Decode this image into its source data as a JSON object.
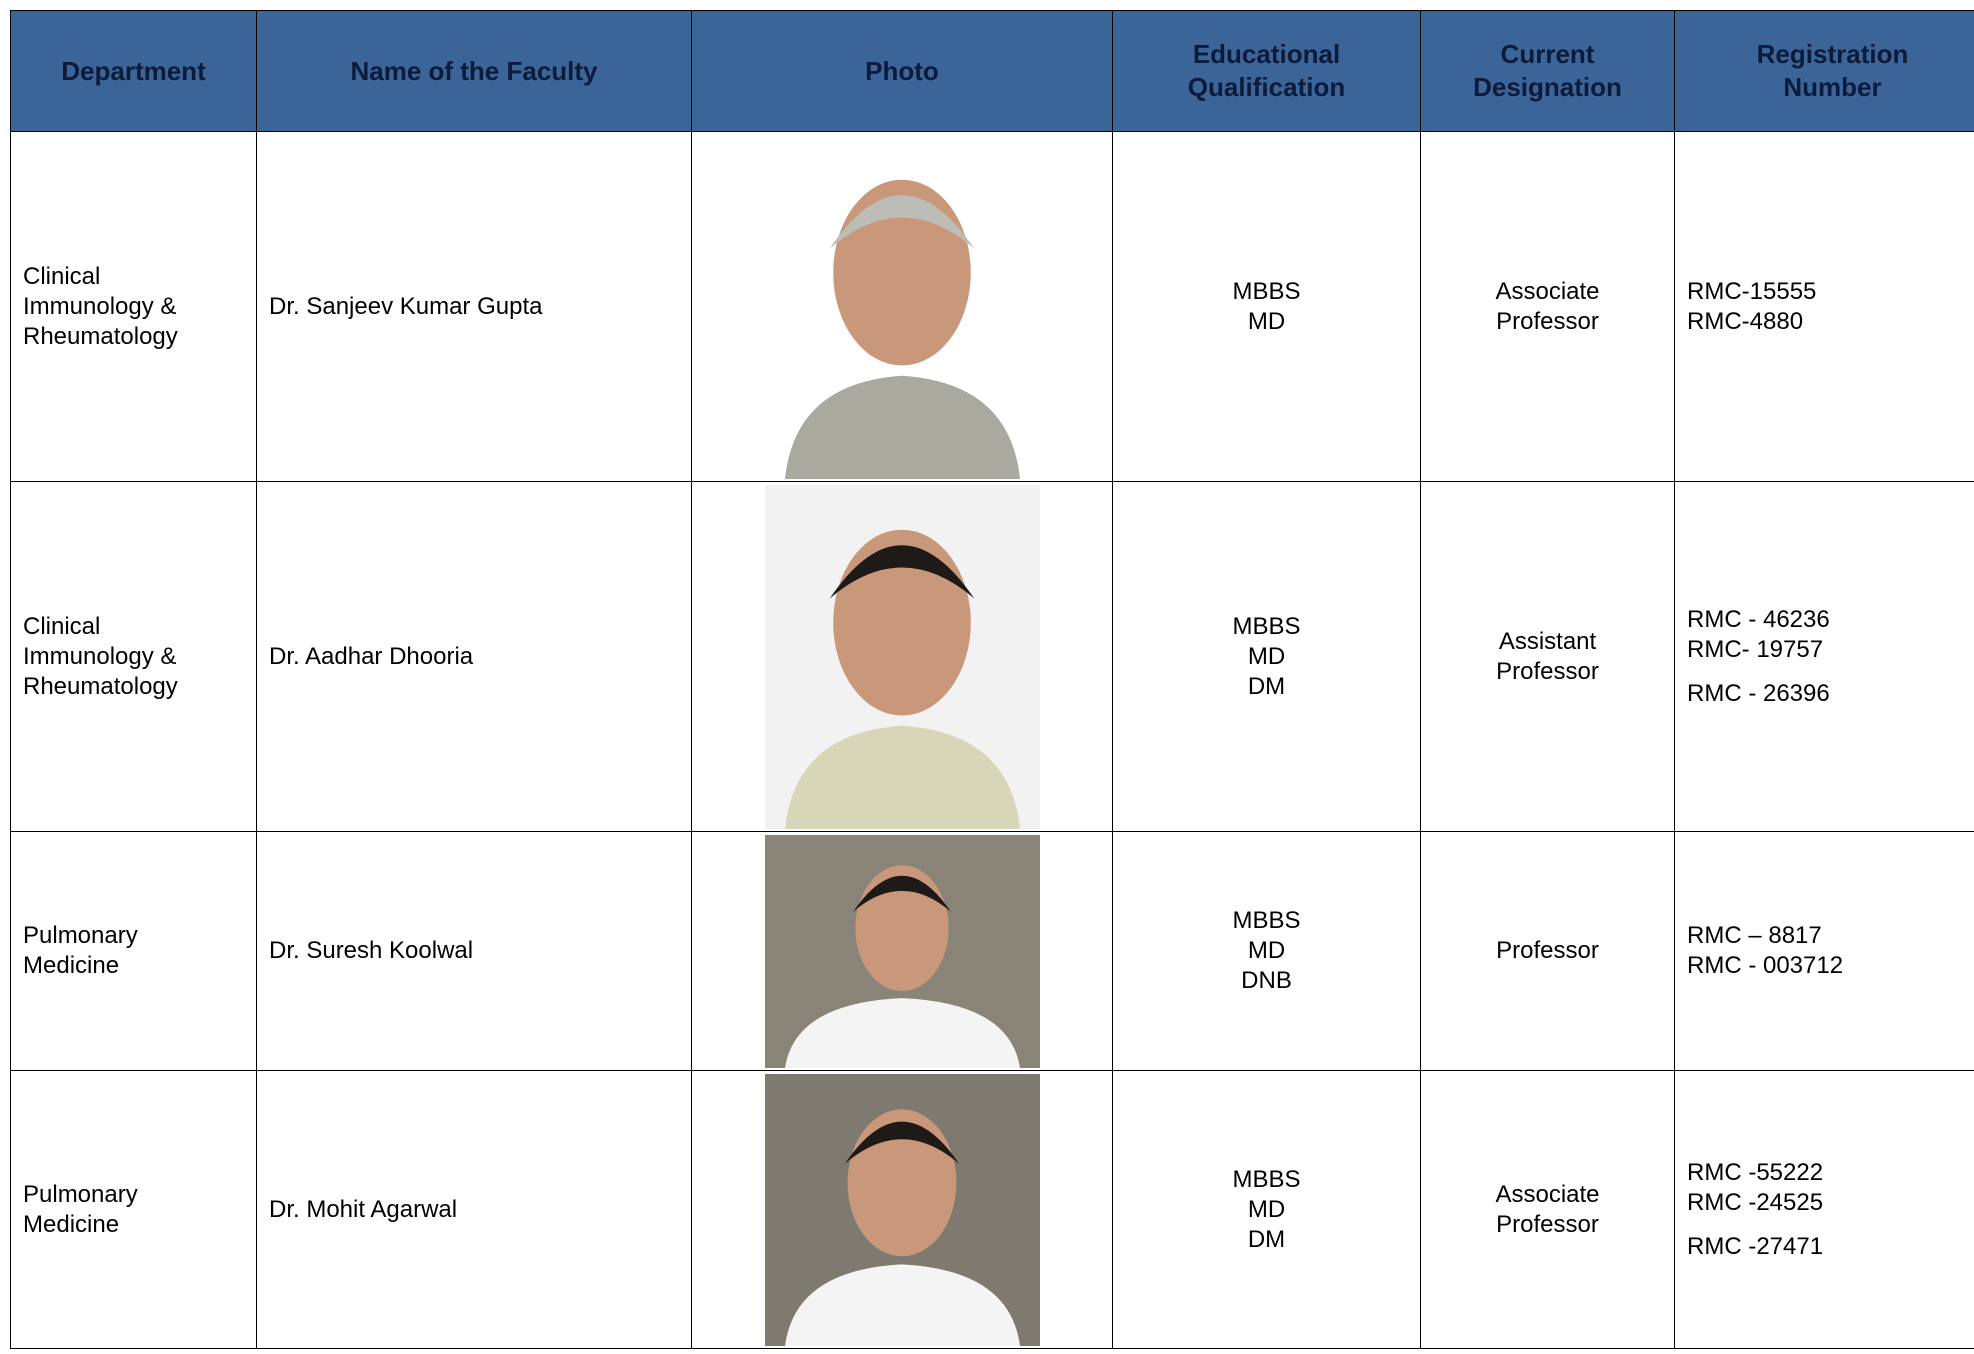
{
  "table": {
    "headers": [
      [
        "Department"
      ],
      [
        "Name of the Faculty"
      ],
      [
        "Photo"
      ],
      [
        "Educational",
        "Qualification"
      ],
      [
        "Current",
        "Designation"
      ],
      [
        "Registration",
        "Number"
      ]
    ],
    "rows": [
      {
        "department": [
          "Clinical",
          "Immunology &",
          "Rheumatology"
        ],
        "name": "Dr. Sanjeev Kumar Gupta",
        "qualification": [
          "MBBS",
          "MD"
        ],
        "designation": [
          "Associate",
          "Professor"
        ],
        "registration": [
          "RMC-15555",
          "RMC-4880"
        ]
      },
      {
        "department": [
          "Clinical",
          "Immunology &",
          "Rheumatology"
        ],
        "name": "Dr. Aadhar Dhooria",
        "qualification": [
          "MBBS",
          "MD",
          "DM"
        ],
        "designation": [
          "Assistant",
          "Professor"
        ],
        "registration": [
          "RMC - 46236",
          "RMC- 19757",
          "RMC - 26396"
        ]
      },
      {
        "department": [
          "Pulmonary",
          "Medicine"
        ],
        "name": "Dr. Suresh Koolwal",
        "qualification": [
          "MBBS",
          "MD",
          "DNB"
        ],
        "designation": [
          "Professor"
        ],
        "registration": [
          "RMC – 8817",
          "RMC - 003712"
        ]
      },
      {
        "department": [
          "Pulmonary",
          "Medicine"
        ],
        "name": "Dr. Mohit Agarwal",
        "qualification": [
          "MBBS",
          "MD",
          "DM"
        ],
        "designation": [
          "Associate",
          "Professor"
        ],
        "registration": [
          "RMC -55222",
          "RMC -24525",
          "RMC -27471"
        ]
      }
    ]
  }
}
